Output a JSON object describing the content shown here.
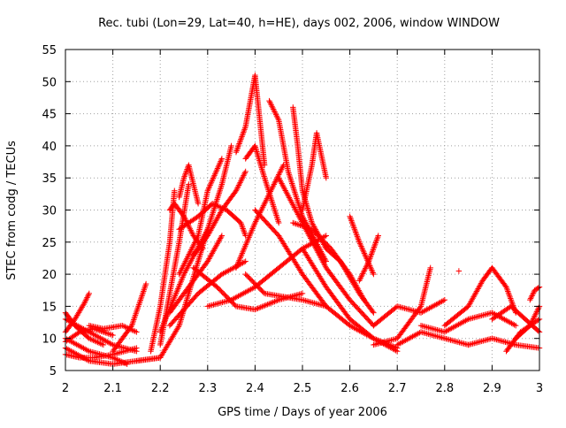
{
  "chart_data": {
    "type": "scatter",
    "title": "Rec. tubi (Lon=29, Lat=40, h=HE), days 002, 2006, window WINDOW",
    "xlabel": "GPS time / Days of year 2006",
    "ylabel": "STEC from codg / TECUs",
    "xlim": [
      2,
      3
    ],
    "ylim": [
      5,
      55
    ],
    "xticks": [
      "2",
      "2.1",
      "2.2",
      "2.3",
      "2.4",
      "2.5",
      "2.6",
      "2.7",
      "2.8",
      "2.9",
      "3"
    ],
    "yticks": [
      "5",
      "10",
      "15",
      "20",
      "25",
      "30",
      "35",
      "40",
      "45",
      "50",
      "55"
    ],
    "grid": true,
    "marker": "+",
    "color": "#ff0000",
    "series": [
      {
        "x": [
          2.0,
          2.02,
          2.04,
          2.05
        ],
        "y": [
          11,
          13,
          15.5,
          17
        ]
      },
      {
        "x": [
          2.0,
          2.02,
          2.05,
          2.08
        ],
        "y": [
          14,
          12,
          10,
          9
        ]
      },
      {
        "x": [
          2.0,
          2.03,
          2.06,
          2.1,
          2.15
        ],
        "y": [
          7.5,
          7,
          7,
          7.5,
          8.5
        ]
      },
      {
        "x": [
          2.0,
          2.05,
          2.1,
          2.15,
          2.2
        ],
        "y": [
          8.5,
          6.5,
          6,
          6.5,
          7
        ]
      },
      {
        "x": [
          2.0,
          2.03,
          2.06,
          2.1
        ],
        "y": [
          9.5,
          11,
          11.5,
          10.5
        ]
      },
      {
        "x": [
          2.0,
          2.05,
          2.1,
          2.15
        ],
        "y": [
          13,
          11,
          9,
          8
        ]
      },
      {
        "x": [
          2.05,
          2.08,
          2.12,
          2.15
        ],
        "y": [
          12,
          11.5,
          12,
          11
        ]
      },
      {
        "x": [
          2.1,
          2.14,
          2.17
        ],
        "y": [
          8,
          12,
          18.5
        ]
      },
      {
        "x": [
          2.0,
          2.05,
          2.1,
          2.13
        ],
        "y": [
          10,
          8,
          7,
          6
        ]
      },
      {
        "x": [
          2.15,
          2.2,
          2.24,
          2.28,
          2.3
        ],
        "y": [
          6.5,
          7,
          12,
          22,
          27
        ]
      },
      {
        "x": [
          2.18,
          2.2,
          2.22,
          2.23
        ],
        "y": [
          8,
          15,
          25,
          33
        ]
      },
      {
        "x": [
          2.2,
          2.22,
          2.24,
          2.26
        ],
        "y": [
          9,
          17,
          25,
          34
        ]
      },
      {
        "x": [
          2.22,
          2.23,
          2.25,
          2.27,
          2.29
        ],
        "y": [
          30,
          31,
          29,
          26,
          24
        ]
      },
      {
        "x": [
          2.24,
          2.25,
          2.26,
          2.28
        ],
        "y": [
          32,
          35,
          37,
          31
        ]
      },
      {
        "x": [
          2.2,
          2.25,
          2.3,
          2.33,
          2.35
        ],
        "y": [
          11,
          20,
          27,
          34,
          40
        ]
      },
      {
        "x": [
          2.22,
          2.26,
          2.3,
          2.33
        ],
        "y": [
          14,
          18,
          22,
          26
        ]
      },
      {
        "x": [
          2.24,
          2.28,
          2.3,
          2.33
        ],
        "y": [
          20,
          26,
          33,
          38
        ]
      },
      {
        "x": [
          2.27,
          2.3,
          2.33,
          2.36,
          2.38
        ],
        "y": [
          23,
          26,
          30,
          33,
          36
        ]
      },
      {
        "x": [
          2.24,
          2.28,
          2.31,
          2.34,
          2.37,
          2.38
        ],
        "y": [
          27,
          29,
          31,
          30,
          28,
          26
        ]
      },
      {
        "x": [
          2.22,
          2.28,
          2.33,
          2.38
        ],
        "y": [
          12,
          17,
          20,
          22
        ]
      },
      {
        "x": [
          2.36,
          2.38,
          2.39,
          2.4,
          2.41,
          2.42
        ],
        "y": [
          39,
          43,
          47,
          51,
          44,
          37
        ]
      },
      {
        "x": [
          2.38,
          2.4,
          2.42,
          2.45
        ],
        "y": [
          38,
          40,
          35,
          28
        ]
      },
      {
        "x": [
          2.3,
          2.35,
          2.4,
          2.45,
          2.5,
          2.55
        ],
        "y": [
          15,
          16,
          18,
          21,
          24,
          26
        ]
      },
      {
        "x": [
          2.27,
          2.32,
          2.36,
          2.4,
          2.45,
          2.5
        ],
        "y": [
          21,
          18,
          15,
          14.5,
          16,
          17
        ]
      },
      {
        "x": [
          2.38,
          2.42,
          2.46,
          2.5,
          2.55
        ],
        "y": [
          20,
          17,
          16.5,
          16,
          15
        ]
      },
      {
        "x": [
          2.43,
          2.45,
          2.47,
          2.5,
          2.55
        ],
        "y": [
          47,
          44,
          36,
          29,
          22
        ]
      },
      {
        "x": [
          2.48,
          2.49,
          2.5,
          2.52,
          2.55
        ],
        "y": [
          46,
          40,
          33,
          28,
          24
        ]
      },
      {
        "x": [
          2.5,
          2.52,
          2.53,
          2.55
        ],
        "y": [
          30,
          37,
          42,
          35
        ]
      },
      {
        "x": [
          2.36,
          2.4,
          2.44,
          2.46
        ],
        "y": [
          21,
          28,
          34,
          37
        ]
      },
      {
        "x": [
          2.45,
          2.5,
          2.55,
          2.6,
          2.65
        ],
        "y": [
          35,
          28,
          21,
          16,
          12
        ]
      },
      {
        "x": [
          2.4,
          2.45,
          2.5,
          2.55,
          2.6,
          2.65,
          2.7
        ],
        "y": [
          30,
          26,
          20,
          15,
          12,
          10,
          8.5
        ]
      },
      {
        "x": [
          2.5,
          2.55,
          2.6,
          2.65,
          2.7
        ],
        "y": [
          24,
          18,
          13,
          10,
          8
        ]
      },
      {
        "x": [
          2.48,
          2.52,
          2.56,
          2.6,
          2.63
        ],
        "y": [
          28,
          27,
          24,
          20,
          16
        ]
      },
      {
        "x": [
          2.55,
          2.58,
          2.62,
          2.65
        ],
        "y": [
          24,
          22,
          17,
          14
        ]
      },
      {
        "x": [
          2.6,
          2.62,
          2.65
        ],
        "y": [
          29,
          25,
          20
        ]
      },
      {
        "x": [
          2.62,
          2.64,
          2.66
        ],
        "y": [
          19,
          22,
          26
        ]
      },
      {
        "x": [
          2.65,
          2.7,
          2.75,
          2.77
        ],
        "y": [
          9,
          10,
          15,
          21
        ]
      },
      {
        "x": [
          2.65,
          2.7,
          2.75,
          2.8
        ],
        "y": [
          12,
          15,
          14,
          16
        ]
      },
      {
        "x": [
          2.7,
          2.75,
          2.8,
          2.85
        ],
        "y": [
          9,
          11,
          10,
          9
        ]
      },
      {
        "x": [
          2.75,
          2.8,
          2.85,
          2.9,
          2.95
        ],
        "y": [
          12,
          11,
          13,
          14,
          12
        ]
      },
      {
        "x": [
          2.8,
          2.85,
          2.88,
          2.9,
          2.93,
          2.95
        ],
        "y": [
          12,
          15,
          19,
          21,
          18,
          14
        ]
      },
      {
        "x": [
          2.85,
          2.9,
          2.95,
          3.0
        ],
        "y": [
          9,
          10,
          9,
          8.5
        ]
      },
      {
        "x": [
          2.9,
          2.94,
          2.97,
          3.0
        ],
        "y": [
          13,
          15,
          13,
          11
        ]
      },
      {
        "x": [
          2.95,
          2.98,
          3.0
        ],
        "y": [
          10,
          12,
          15
        ]
      },
      {
        "x": [
          2.93,
          2.96,
          3.0
        ],
        "y": [
          8,
          11,
          13
        ]
      },
      {
        "x": [
          2.98,
          2.99,
          3.0
        ],
        "y": [
          16,
          17.5,
          18
        ]
      },
      {
        "x": [
          2.83
        ],
        "y": [
          20.5
        ]
      }
    ]
  }
}
